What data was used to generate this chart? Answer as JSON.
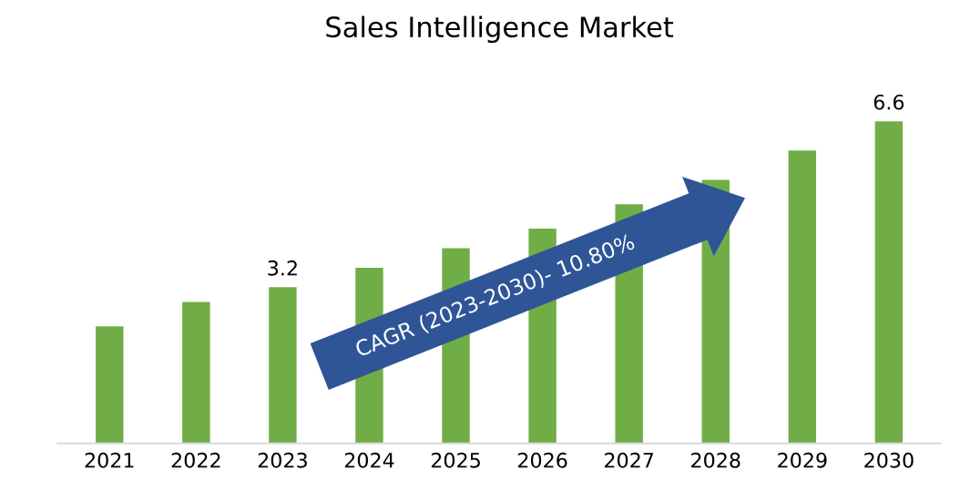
{
  "chart_data": {
    "type": "bar",
    "title": "Sales Intelligence Market",
    "categories": [
      "2021",
      "2022",
      "2023",
      "2024",
      "2025",
      "2026",
      "2027",
      "2028",
      "2029",
      "2030"
    ],
    "values": [
      2.4,
      2.9,
      3.2,
      3.6,
      4.0,
      4.4,
      4.9,
      5.4,
      6.0,
      6.6
    ],
    "value_labels": [
      null,
      null,
      "3.2",
      null,
      null,
      null,
      null,
      null,
      null,
      "6.6"
    ],
    "color": "#70ad47",
    "annotations": [
      "CAGR (2023-2030)- 10.80%"
    ],
    "grid": false,
    "legend": false
  }
}
